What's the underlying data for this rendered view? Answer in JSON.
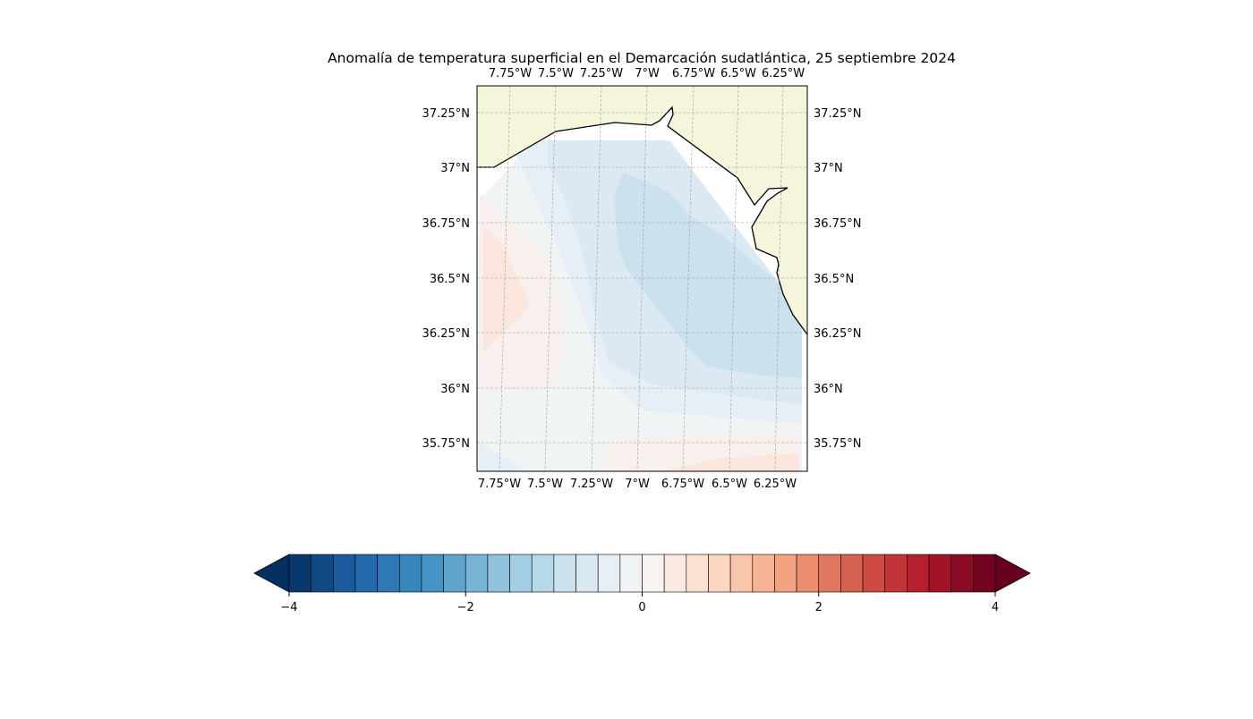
{
  "title": "Anomalía de temperatura superficial en el Demarcación sudatlántica, 25 septiembre 2024",
  "map": {
    "lon_labels": [
      "7.75°W",
      "7.5°W",
      "7.25°W",
      "7°W",
      "6.75°W",
      "6.5°W",
      "6.25°W"
    ],
    "lat_labels": [
      "37.25°N",
      "37°N",
      "36.75°N",
      "36.5°N",
      "36.25°N",
      "36°N",
      "35.75°N"
    ],
    "land_color": "#f5f5dc",
    "coastline_color": "#000000",
    "gridlines": true,
    "filled_levels": [
      {
        "range": [
          -1.0,
          -0.75
        ],
        "color": "#cbe1ee"
      },
      {
        "range": [
          -0.75,
          -0.5
        ],
        "color": "#dbe9f2"
      },
      {
        "range": [
          -0.5,
          -0.25
        ],
        "color": "#e6eff5"
      },
      {
        "range": [
          -0.25,
          0.0
        ],
        "color": "#f1f4f5"
      },
      {
        "range": [
          0.0,
          0.25
        ],
        "color": "#f7f0ed"
      },
      {
        "range": [
          0.25,
          0.5
        ],
        "color": "#fbe6dd"
      }
    ]
  },
  "colorbar": {
    "min": -4,
    "max": 4,
    "step": 0.25,
    "extend": "both",
    "colormap": "RdBu_r",
    "anchors": [
      "#053061",
      "#2166ac",
      "#4393c3",
      "#92c5de",
      "#d1e5f0",
      "#f7f7f7",
      "#fddbc7",
      "#f4a582",
      "#d6604d",
      "#b2182b",
      "#67001f"
    ],
    "ticks": [
      "−4",
      "−2",
      "0",
      "2",
      "4"
    ],
    "tick_values": [
      -4,
      -2,
      0,
      2,
      4
    ]
  }
}
